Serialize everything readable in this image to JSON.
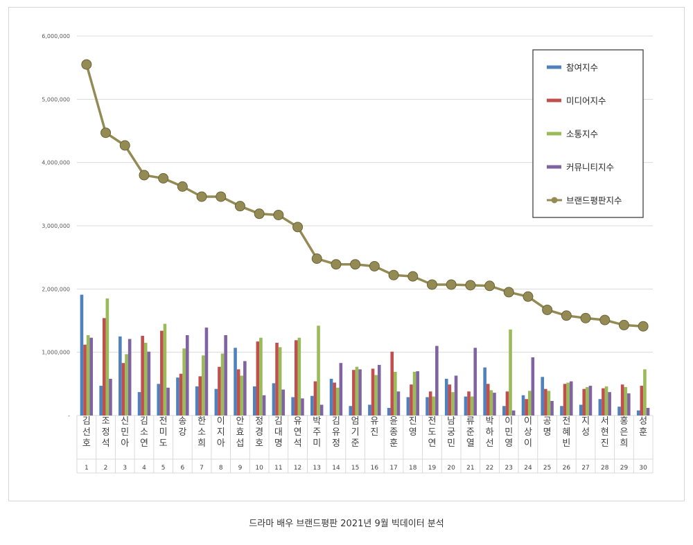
{
  "caption": "드라마 배우 브랜드평판  2021년 9월 빅데이터 분석",
  "chart_data": {
    "type": "bar",
    "ylim": [
      0,
      6000000
    ],
    "yticks": [
      {
        "value": 0,
        "label": "-"
      },
      {
        "value": 1000000,
        "label": "1,000,000"
      },
      {
        "value": 2000000,
        "label": "2,000,000"
      },
      {
        "value": 3000000,
        "label": "3,000,000"
      },
      {
        "value": 4000000,
        "label": "4,000,000"
      },
      {
        "value": 5000000,
        "label": "5,000,000"
      },
      {
        "value": 6000000,
        "label": "6,000,000"
      }
    ],
    "grid": true,
    "legend_position": "top-right",
    "names": [
      "김선호",
      "조정석",
      "신민아",
      "김소연",
      "전미도",
      "송강",
      "한소희",
      "이지아",
      "안효섭",
      "정경호",
      "김대명",
      "유연석",
      "박주미",
      "김유정",
      "엄기준",
      "유진",
      "윤종훈",
      "진영",
      "전도연",
      "남궁민",
      "류준열",
      "박하선",
      "이민영",
      "이상이",
      "공명",
      "전혜빈",
      "지성",
      "서현진",
      "홍은희",
      "성훈"
    ],
    "ranks": [
      "1",
      "2",
      "3",
      "4",
      "5",
      "6",
      "7",
      "8",
      "9",
      "10",
      "11",
      "12",
      "13",
      "14",
      "15",
      "16",
      "17",
      "18",
      "19",
      "20",
      "21",
      "22",
      "23",
      "24",
      "25",
      "26",
      "27",
      "28",
      "29",
      "30"
    ],
    "series": [
      {
        "name": "참여지수",
        "kind": "bar",
        "color": "#4f81bd",
        "values": [
          1910000,
          470000,
          1250000,
          370000,
          500000,
          600000,
          460000,
          420000,
          1070000,
          460000,
          510000,
          290000,
          310000,
          580000,
          150000,
          170000,
          120000,
          290000,
          290000,
          580000,
          300000,
          760000,
          150000,
          320000,
          610000,
          150000,
          170000,
          260000,
          140000,
          80000
        ]
      },
      {
        "name": "미디어지수",
        "kind": "bar",
        "color": "#c0504d",
        "values": [
          1120000,
          1540000,
          830000,
          1260000,
          1340000,
          660000,
          620000,
          770000,
          730000,
          1170000,
          1150000,
          1190000,
          540000,
          520000,
          720000,
          740000,
          1010000,
          490000,
          380000,
          490000,
          380000,
          500000,
          380000,
          260000,
          420000,
          500000,
          420000,
          430000,
          490000,
          470000
        ]
      },
      {
        "name": "소통지수",
        "kind": "bar",
        "color": "#9bbb59",
        "values": [
          1270000,
          1850000,
          970000,
          1150000,
          1450000,
          1060000,
          950000,
          980000,
          630000,
          1230000,
          1080000,
          1230000,
          1420000,
          440000,
          770000,
          640000,
          690000,
          690000,
          300000,
          370000,
          300000,
          400000,
          1360000,
          390000,
          390000,
          520000,
          450000,
          460000,
          450000,
          730000
        ]
      },
      {
        "name": "커뮤니티지수",
        "kind": "bar",
        "color": "#8064a2",
        "values": [
          1230000,
          580000,
          1210000,
          1010000,
          440000,
          1270000,
          1390000,
          1270000,
          860000,
          320000,
          410000,
          270000,
          170000,
          830000,
          730000,
          800000,
          380000,
          700000,
          1100000,
          630000,
          1070000,
          360000,
          80000,
          920000,
          230000,
          540000,
          470000,
          370000,
          350000,
          120000
        ]
      },
      {
        "name": "브랜드평판지수",
        "kind": "line",
        "color": "#948a54",
        "values": [
          5550000,
          4470000,
          4270000,
          3800000,
          3750000,
          3620000,
          3460000,
          3460000,
          3310000,
          3190000,
          3170000,
          2980000,
          2480000,
          2390000,
          2390000,
          2360000,
          2220000,
          2200000,
          2070000,
          2070000,
          2060000,
          2050000,
          1950000,
          1880000,
          1670000,
          1580000,
          1540000,
          1510000,
          1430000,
          1410000
        ]
      }
    ]
  }
}
